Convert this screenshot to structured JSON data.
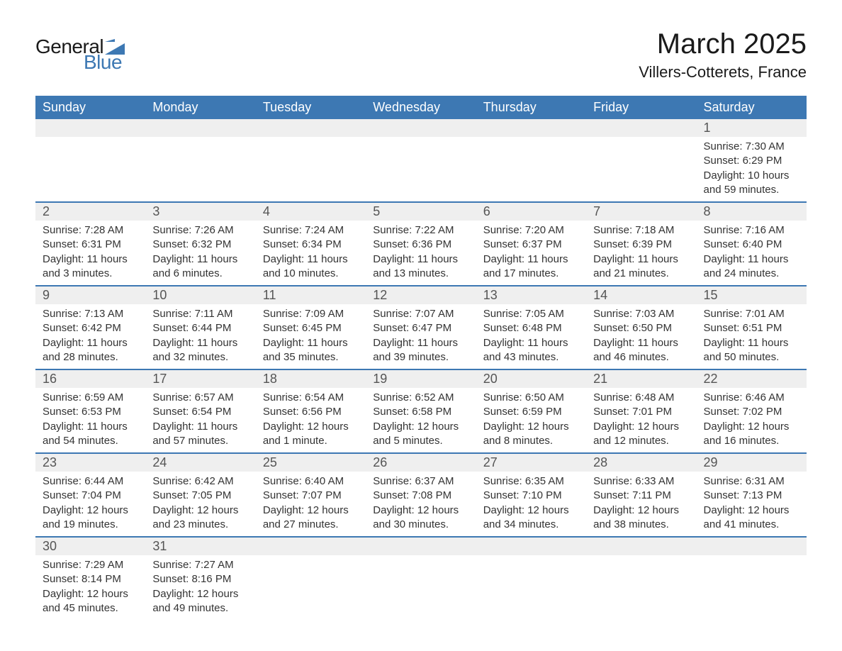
{
  "brand": {
    "name1": "General",
    "name2": "Blue",
    "mark_color": "#3d78b3",
    "text_color_dark": "#1a1a1a",
    "text_color_blue": "#3d78b3"
  },
  "title": "March 2025",
  "location": "Villers-Cotterets, France",
  "colors": {
    "header_bg": "#3d78b3",
    "header_text": "#ffffff",
    "daynum_bg": "#efefef",
    "daynum_text": "#555555",
    "body_text": "#333333",
    "rule": "#3d78b3",
    "page_bg": "#ffffff"
  },
  "typography": {
    "month_title_size_pt": 30,
    "location_size_pt": 16,
    "dayheader_size_pt": 14,
    "daynum_size_pt": 14,
    "body_size_pt": 11
  },
  "day_headers": [
    "Sunday",
    "Monday",
    "Tuesday",
    "Wednesday",
    "Thursday",
    "Friday",
    "Saturday"
  ],
  "weeks": [
    [
      null,
      null,
      null,
      null,
      null,
      null,
      {
        "n": "1",
        "sunrise": "Sunrise: 7:30 AM",
        "sunset": "Sunset: 6:29 PM",
        "daylight1": "Daylight: 10 hours",
        "daylight2": "and 59 minutes."
      }
    ],
    [
      {
        "n": "2",
        "sunrise": "Sunrise: 7:28 AM",
        "sunset": "Sunset: 6:31 PM",
        "daylight1": "Daylight: 11 hours",
        "daylight2": "and 3 minutes."
      },
      {
        "n": "3",
        "sunrise": "Sunrise: 7:26 AM",
        "sunset": "Sunset: 6:32 PM",
        "daylight1": "Daylight: 11 hours",
        "daylight2": "and 6 minutes."
      },
      {
        "n": "4",
        "sunrise": "Sunrise: 7:24 AM",
        "sunset": "Sunset: 6:34 PM",
        "daylight1": "Daylight: 11 hours",
        "daylight2": "and 10 minutes."
      },
      {
        "n": "5",
        "sunrise": "Sunrise: 7:22 AM",
        "sunset": "Sunset: 6:36 PM",
        "daylight1": "Daylight: 11 hours",
        "daylight2": "and 13 minutes."
      },
      {
        "n": "6",
        "sunrise": "Sunrise: 7:20 AM",
        "sunset": "Sunset: 6:37 PM",
        "daylight1": "Daylight: 11 hours",
        "daylight2": "and 17 minutes."
      },
      {
        "n": "7",
        "sunrise": "Sunrise: 7:18 AM",
        "sunset": "Sunset: 6:39 PM",
        "daylight1": "Daylight: 11 hours",
        "daylight2": "and 21 minutes."
      },
      {
        "n": "8",
        "sunrise": "Sunrise: 7:16 AM",
        "sunset": "Sunset: 6:40 PM",
        "daylight1": "Daylight: 11 hours",
        "daylight2": "and 24 minutes."
      }
    ],
    [
      {
        "n": "9",
        "sunrise": "Sunrise: 7:13 AM",
        "sunset": "Sunset: 6:42 PM",
        "daylight1": "Daylight: 11 hours",
        "daylight2": "and 28 minutes."
      },
      {
        "n": "10",
        "sunrise": "Sunrise: 7:11 AM",
        "sunset": "Sunset: 6:44 PM",
        "daylight1": "Daylight: 11 hours",
        "daylight2": "and 32 minutes."
      },
      {
        "n": "11",
        "sunrise": "Sunrise: 7:09 AM",
        "sunset": "Sunset: 6:45 PM",
        "daylight1": "Daylight: 11 hours",
        "daylight2": "and 35 minutes."
      },
      {
        "n": "12",
        "sunrise": "Sunrise: 7:07 AM",
        "sunset": "Sunset: 6:47 PM",
        "daylight1": "Daylight: 11 hours",
        "daylight2": "and 39 minutes."
      },
      {
        "n": "13",
        "sunrise": "Sunrise: 7:05 AM",
        "sunset": "Sunset: 6:48 PM",
        "daylight1": "Daylight: 11 hours",
        "daylight2": "and 43 minutes."
      },
      {
        "n": "14",
        "sunrise": "Sunrise: 7:03 AM",
        "sunset": "Sunset: 6:50 PM",
        "daylight1": "Daylight: 11 hours",
        "daylight2": "and 46 minutes."
      },
      {
        "n": "15",
        "sunrise": "Sunrise: 7:01 AM",
        "sunset": "Sunset: 6:51 PM",
        "daylight1": "Daylight: 11 hours",
        "daylight2": "and 50 minutes."
      }
    ],
    [
      {
        "n": "16",
        "sunrise": "Sunrise: 6:59 AM",
        "sunset": "Sunset: 6:53 PM",
        "daylight1": "Daylight: 11 hours",
        "daylight2": "and 54 minutes."
      },
      {
        "n": "17",
        "sunrise": "Sunrise: 6:57 AM",
        "sunset": "Sunset: 6:54 PM",
        "daylight1": "Daylight: 11 hours",
        "daylight2": "and 57 minutes."
      },
      {
        "n": "18",
        "sunrise": "Sunrise: 6:54 AM",
        "sunset": "Sunset: 6:56 PM",
        "daylight1": "Daylight: 12 hours",
        "daylight2": "and 1 minute."
      },
      {
        "n": "19",
        "sunrise": "Sunrise: 6:52 AM",
        "sunset": "Sunset: 6:58 PM",
        "daylight1": "Daylight: 12 hours",
        "daylight2": "and 5 minutes."
      },
      {
        "n": "20",
        "sunrise": "Sunrise: 6:50 AM",
        "sunset": "Sunset: 6:59 PM",
        "daylight1": "Daylight: 12 hours",
        "daylight2": "and 8 minutes."
      },
      {
        "n": "21",
        "sunrise": "Sunrise: 6:48 AM",
        "sunset": "Sunset: 7:01 PM",
        "daylight1": "Daylight: 12 hours",
        "daylight2": "and 12 minutes."
      },
      {
        "n": "22",
        "sunrise": "Sunrise: 6:46 AM",
        "sunset": "Sunset: 7:02 PM",
        "daylight1": "Daylight: 12 hours",
        "daylight2": "and 16 minutes."
      }
    ],
    [
      {
        "n": "23",
        "sunrise": "Sunrise: 6:44 AM",
        "sunset": "Sunset: 7:04 PM",
        "daylight1": "Daylight: 12 hours",
        "daylight2": "and 19 minutes."
      },
      {
        "n": "24",
        "sunrise": "Sunrise: 6:42 AM",
        "sunset": "Sunset: 7:05 PM",
        "daylight1": "Daylight: 12 hours",
        "daylight2": "and 23 minutes."
      },
      {
        "n": "25",
        "sunrise": "Sunrise: 6:40 AM",
        "sunset": "Sunset: 7:07 PM",
        "daylight1": "Daylight: 12 hours",
        "daylight2": "and 27 minutes."
      },
      {
        "n": "26",
        "sunrise": "Sunrise: 6:37 AM",
        "sunset": "Sunset: 7:08 PM",
        "daylight1": "Daylight: 12 hours",
        "daylight2": "and 30 minutes."
      },
      {
        "n": "27",
        "sunrise": "Sunrise: 6:35 AM",
        "sunset": "Sunset: 7:10 PM",
        "daylight1": "Daylight: 12 hours",
        "daylight2": "and 34 minutes."
      },
      {
        "n": "28",
        "sunrise": "Sunrise: 6:33 AM",
        "sunset": "Sunset: 7:11 PM",
        "daylight1": "Daylight: 12 hours",
        "daylight2": "and 38 minutes."
      },
      {
        "n": "29",
        "sunrise": "Sunrise: 6:31 AM",
        "sunset": "Sunset: 7:13 PM",
        "daylight1": "Daylight: 12 hours",
        "daylight2": "and 41 minutes."
      }
    ],
    [
      {
        "n": "30",
        "sunrise": "Sunrise: 7:29 AM",
        "sunset": "Sunset: 8:14 PM",
        "daylight1": "Daylight: 12 hours",
        "daylight2": "and 45 minutes."
      },
      {
        "n": "31",
        "sunrise": "Sunrise: 7:27 AM",
        "sunset": "Sunset: 8:16 PM",
        "daylight1": "Daylight: 12 hours",
        "daylight2": "and 49 minutes."
      },
      null,
      null,
      null,
      null,
      null
    ]
  ]
}
